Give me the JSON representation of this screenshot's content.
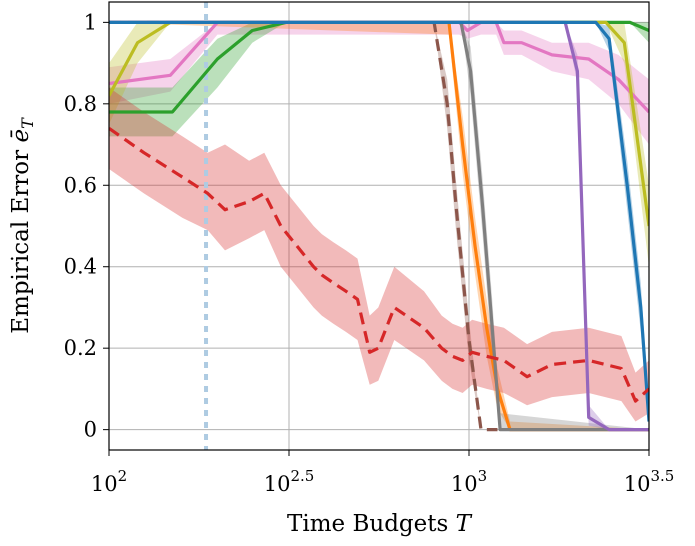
{
  "chart_data": {
    "type": "line",
    "xlabel": "Time Budgets T",
    "ylabel": "Empirical Error ē_T",
    "x_scale": "log10",
    "xlim": [
      100,
      3162.28
    ],
    "ylim": [
      -0.05,
      1.05
    ],
    "grid": true,
    "x_ticks": [
      {
        "value": 100,
        "base": "10",
        "exp": "2"
      },
      {
        "value": 316.23,
        "base": "10",
        "exp": "2.5"
      },
      {
        "value": 1000,
        "base": "10",
        "exp": "3"
      },
      {
        "value": 3162.28,
        "base": "10",
        "exp": "3.5"
      }
    ],
    "y_ticks": [
      {
        "value": 0,
        "label": "0"
      },
      {
        "value": 0.2,
        "label": "0.2"
      },
      {
        "value": 0.4,
        "label": "0.4"
      },
      {
        "value": 0.6,
        "label": "0.6"
      },
      {
        "value": 0.8,
        "label": "0.8"
      },
      {
        "value": 1,
        "label": "1"
      }
    ],
    "reference_line": {
      "x": 186,
      "color": "#aecbe2",
      "style": "dotted"
    },
    "series": [
      {
        "color": "#e377c2",
        "dashed": false,
        "x": [
          100,
          148,
          200,
          940,
          990,
          1080,
          1190,
          1250,
          1400,
          1700,
          2150,
          2600,
          3162
        ],
        "y": [
          0.85,
          0.87,
          1.0,
          1.0,
          0.98,
          1.0,
          1.0,
          0.95,
          0.95,
          0.92,
          0.91,
          0.86,
          0.78
        ],
        "lower": [
          0.8,
          0.83,
          0.97,
          0.97,
          0.96,
          0.97,
          0.97,
          0.92,
          0.92,
          0.88,
          0.86,
          0.8,
          0.7
        ],
        "upper": [
          0.89,
          0.91,
          1.0,
          1.0,
          1.0,
          1.0,
          1.0,
          0.98,
          0.98,
          0.95,
          0.95,
          0.92,
          0.86
        ]
      },
      {
        "color": "#2ca02c",
        "dashed": false,
        "x": [
          100,
          150,
          200,
          250,
          310,
          2800,
          3162
        ],
        "y": [
          0.78,
          0.78,
          0.91,
          0.98,
          1.0,
          1.0,
          0.98
        ],
        "lower": [
          0.72,
          0.72,
          0.84,
          0.95,
          1.0,
          1.0,
          0.95
        ],
        "upper": [
          0.84,
          0.84,
          0.96,
          1.0,
          1.0,
          1.0,
          1.0
        ]
      },
      {
        "color": "#bcbd22",
        "dashed": false,
        "x": [
          100,
          120,
          148,
          2400,
          2700,
          3162
        ],
        "y": [
          0.82,
          0.95,
          1.0,
          1.0,
          0.95,
          0.5
        ],
        "lower": [
          0.75,
          0.9,
          1.0,
          1.0,
          0.9,
          0.4
        ],
        "upper": [
          0.9,
          1.0,
          1.0,
          1.0,
          1.0,
          0.6
        ]
      },
      {
        "color": "#8c564b",
        "dashed": true,
        "x": [
          100,
          800,
          870,
          920,
          1000,
          1080,
          1200
        ],
        "y": [
          1.0,
          1.0,
          0.8,
          0.55,
          0.22,
          0.0,
          0.0
        ],
        "lower": [
          1.0,
          1.0,
          0.74,
          0.49,
          0.17,
          0.0,
          0.0
        ],
        "upper": [
          1.0,
          1.0,
          0.86,
          0.61,
          0.27,
          0.0,
          0.0
        ]
      },
      {
        "color": "#ff7f0e",
        "dashed": false,
        "x": [
          100,
          880,
          960,
          1040,
          1120,
          1200,
          1300,
          3162
        ],
        "y": [
          1.0,
          1.0,
          0.7,
          0.45,
          0.25,
          0.1,
          0.0,
          0.0
        ],
        "lower": [
          1.0,
          0.97,
          0.63,
          0.38,
          0.18,
          0.05,
          0.0,
          0.0
        ],
        "upper": [
          1.0,
          1.0,
          0.77,
          0.52,
          0.32,
          0.15,
          0.02,
          0.0
        ]
      },
      {
        "color": "#7f7f7f",
        "dashed": false,
        "x": [
          100,
          950,
          1010,
          1090,
          1160,
          1220,
          3162
        ],
        "y": [
          1.0,
          1.0,
          0.88,
          0.55,
          0.25,
          0.0,
          0.0
        ],
        "lower": [
          1.0,
          1.0,
          0.82,
          0.48,
          0.18,
          0.0,
          0.0
        ],
        "upper": [
          1.0,
          1.0,
          0.94,
          0.62,
          0.32,
          0.04,
          0.0
        ]
      },
      {
        "color": "#9467bd",
        "dashed": false,
        "x": [
          100,
          1850,
          2000,
          2150,
          2450,
          3162
        ],
        "y": [
          1.0,
          1.0,
          0.88,
          0.03,
          0.0,
          0.0
        ],
        "lower": [
          1.0,
          1.0,
          0.85,
          0.01,
          0.0,
          0.0
        ],
        "upper": [
          1.0,
          1.0,
          0.92,
          0.06,
          0.0,
          0.0
        ]
      },
      {
        "color": "#1f77b4",
        "dashed": false,
        "x": [
          100,
          2250,
          2450,
          2750,
          3000,
          3162
        ],
        "y": [
          1.0,
          1.0,
          0.96,
          0.6,
          0.3,
          0.02
        ],
        "lower": [
          1.0,
          1.0,
          0.93,
          0.54,
          0.24,
          0.0
        ],
        "upper": [
          1.0,
          1.0,
          0.99,
          0.66,
          0.36,
          0.05
        ]
      },
      {
        "color": "#d62728",
        "dashed": true,
        "x": [
          100,
          125,
          160,
          188,
          210,
          245,
          270,
          300,
          370,
          390,
          420,
          455,
          490,
          530,
          560,
          620,
          750,
          840,
          900,
          960,
          1020,
          1120,
          1250,
          1450,
          1700,
          2150,
          2650,
          2900,
          3162
        ],
        "y": [
          0.74,
          0.68,
          0.62,
          0.58,
          0.54,
          0.56,
          0.58,
          0.5,
          0.4,
          0.38,
          0.36,
          0.34,
          0.32,
          0.19,
          0.2,
          0.3,
          0.25,
          0.2,
          0.18,
          0.17,
          0.19,
          0.18,
          0.17,
          0.13,
          0.16,
          0.17,
          0.15,
          0.07,
          0.1
        ],
        "lower": [
          0.64,
          0.58,
          0.52,
          0.49,
          0.44,
          0.47,
          0.49,
          0.4,
          0.3,
          0.28,
          0.26,
          0.24,
          0.22,
          0.11,
          0.12,
          0.22,
          0.17,
          0.12,
          0.1,
          0.09,
          0.11,
          0.1,
          0.09,
          0.06,
          0.08,
          0.09,
          0.07,
          0.02,
          0.04
        ],
        "upper": [
          0.84,
          0.78,
          0.72,
          0.68,
          0.7,
          0.66,
          0.68,
          0.6,
          0.5,
          0.48,
          0.46,
          0.44,
          0.42,
          0.28,
          0.3,
          0.4,
          0.34,
          0.28,
          0.26,
          0.25,
          0.27,
          0.26,
          0.25,
          0.21,
          0.24,
          0.25,
          0.23,
          0.14,
          0.17
        ]
      }
    ]
  }
}
